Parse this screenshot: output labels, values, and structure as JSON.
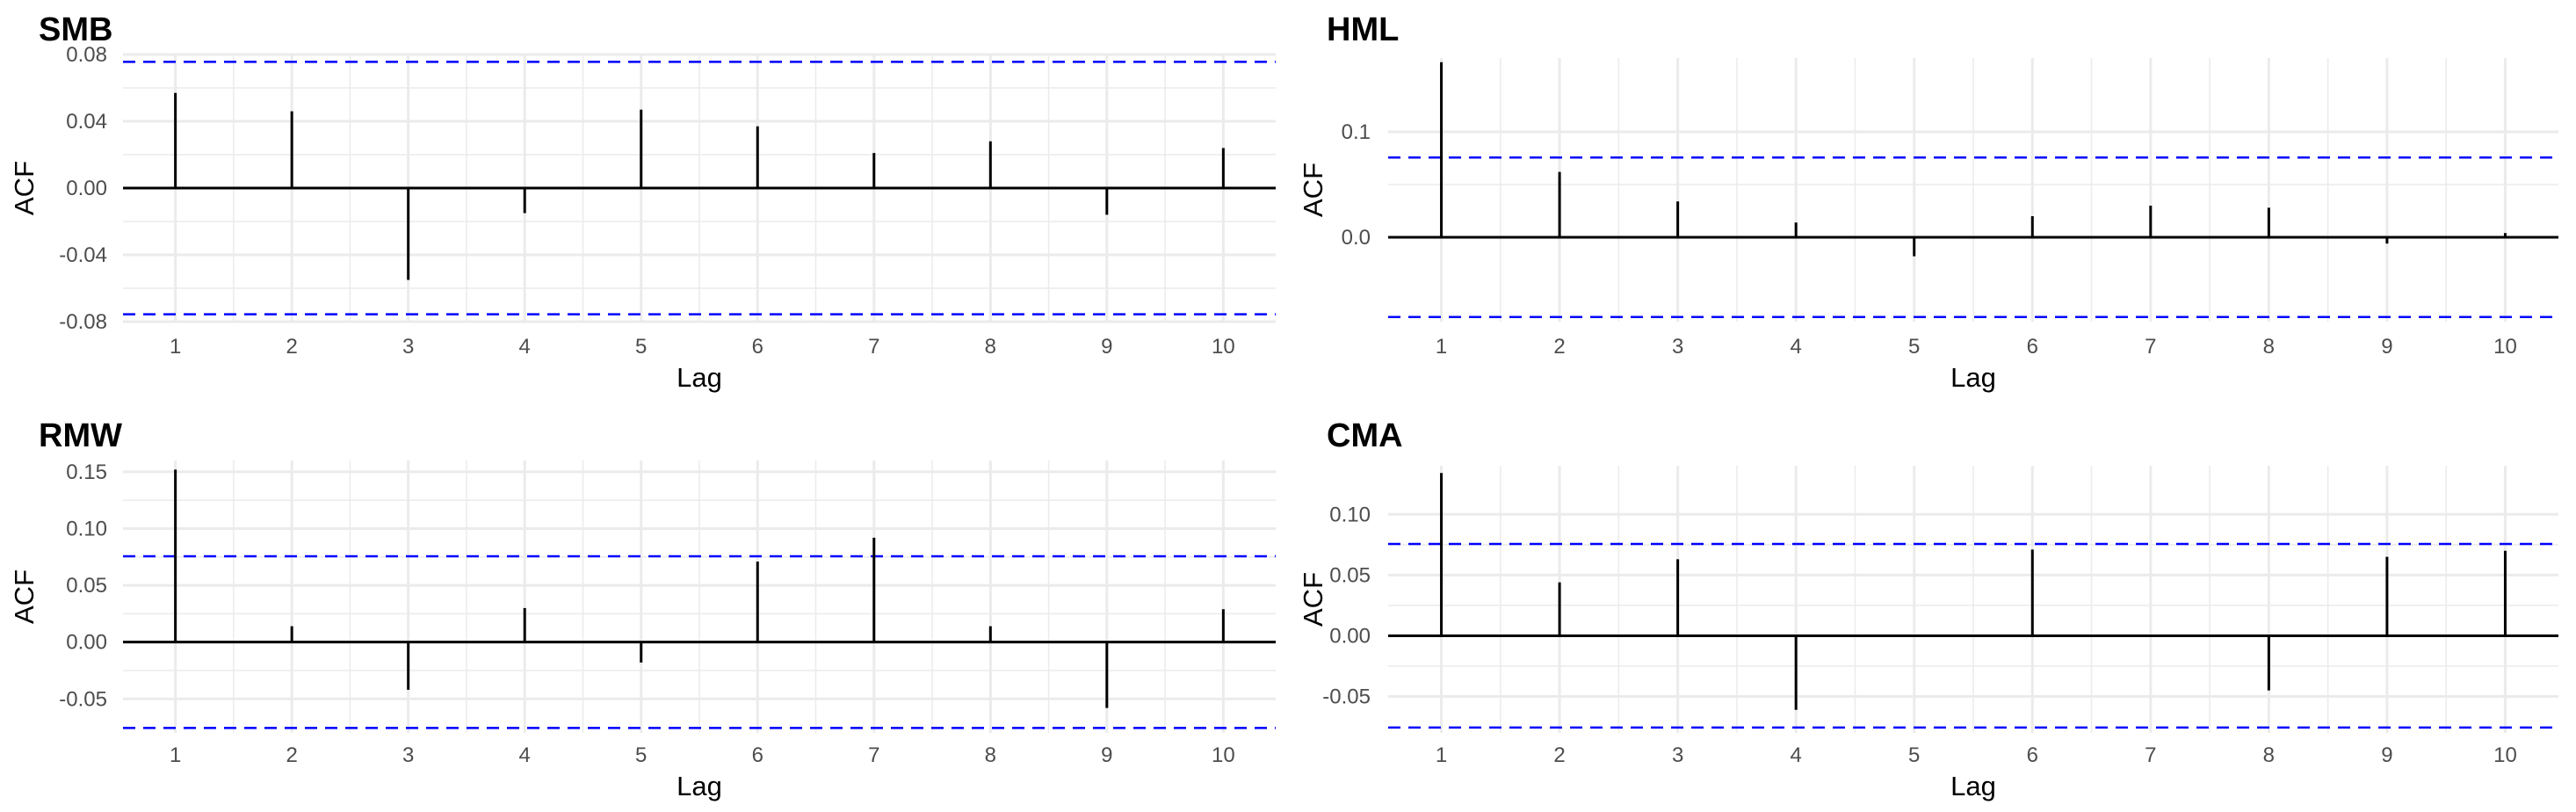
{
  "colors": {
    "bars": "#000000",
    "confidence_band": "#0000ff",
    "grid": "#ebebeb",
    "background": "#ffffff"
  },
  "chart_data": [
    {
      "type": "bar",
      "title": "SMB",
      "xlabel": "Lag",
      "ylabel": "ACF",
      "x": [
        1,
        2,
        3,
        4,
        5,
        6,
        7,
        8,
        9,
        10
      ],
      "values": [
        0.057,
        0.046,
        -0.055,
        -0.015,
        0.047,
        0.037,
        0.021,
        0.028,
        -0.016,
        0.024
      ],
      "confidence_limit": 0.0756,
      "ylim": [
        -0.08,
        0.08
      ],
      "yticks": [
        -0.08,
        -0.04,
        0.0,
        0.04,
        0.08
      ],
      "ytick_labels": [
        "-0.08",
        "-0.04",
        "0.00",
        "0.04",
        "0.08"
      ],
      "xticks": [
        "1",
        "2",
        "3",
        "4",
        "5",
        "6",
        "7",
        "8",
        "9",
        "10"
      ],
      "grid": true
    },
    {
      "type": "bar",
      "title": "HML",
      "xlabel": "Lag",
      "ylabel": "ACF",
      "x": [
        1,
        2,
        3,
        4,
        5,
        6,
        7,
        8,
        9,
        10
      ],
      "values": [
        0.166,
        0.062,
        0.034,
        0.014,
        -0.018,
        0.02,
        0.03,
        0.028,
        -0.006,
        0.004
      ],
      "confidence_limit": 0.0756,
      "ylim": [
        -0.08,
        0.17
      ],
      "yticks": [
        0.0,
        0.1
      ],
      "ytick_labels": [
        "0.0",
        "0.1"
      ],
      "xticks": [
        "1",
        "2",
        "3",
        "4",
        "5",
        "6",
        "7",
        "8",
        "9",
        "10"
      ],
      "grid": true
    },
    {
      "type": "bar",
      "title": "RMW",
      "xlabel": "Lag",
      "ylabel": "ACF",
      "x": [
        1,
        2,
        3,
        4,
        5,
        6,
        7,
        8,
        9,
        10
      ],
      "values": [
        0.152,
        0.014,
        -0.042,
        0.03,
        -0.018,
        0.071,
        0.092,
        0.014,
        -0.058,
        0.029
      ],
      "confidence_limit": 0.0756,
      "ylim": [
        -0.08,
        0.16
      ],
      "yticks": [
        -0.05,
        0.0,
        0.05,
        0.1,
        0.15
      ],
      "ytick_labels": [
        "-0.05",
        "0.00",
        "0.05",
        "0.10",
        "0.15"
      ],
      "xticks": [
        "1",
        "2",
        "3",
        "4",
        "5",
        "6",
        "7",
        "8",
        "9",
        "10"
      ],
      "grid": true
    },
    {
      "type": "bar",
      "title": "CMA",
      "xlabel": "Lag",
      "ylabel": "ACF",
      "x": [
        1,
        2,
        3,
        4,
        5,
        6,
        7,
        8,
        9,
        10
      ],
      "values": [
        0.134,
        0.044,
        0.063,
        -0.061,
        0.0,
        0.071,
        0.0,
        -0.045,
        0.065,
        0.07
      ],
      "confidence_limit": 0.0756,
      "ylim": [
        -0.08,
        0.14
      ],
      "yticks": [
        -0.05,
        0.0,
        0.05,
        0.1
      ],
      "ytick_labels": [
        "-0.05",
        "0.00",
        "0.05",
        "0.10"
      ],
      "xticks": [
        "1",
        "2",
        "3",
        "4",
        "5",
        "6",
        "7",
        "8",
        "9",
        "10"
      ],
      "grid": true
    }
  ]
}
